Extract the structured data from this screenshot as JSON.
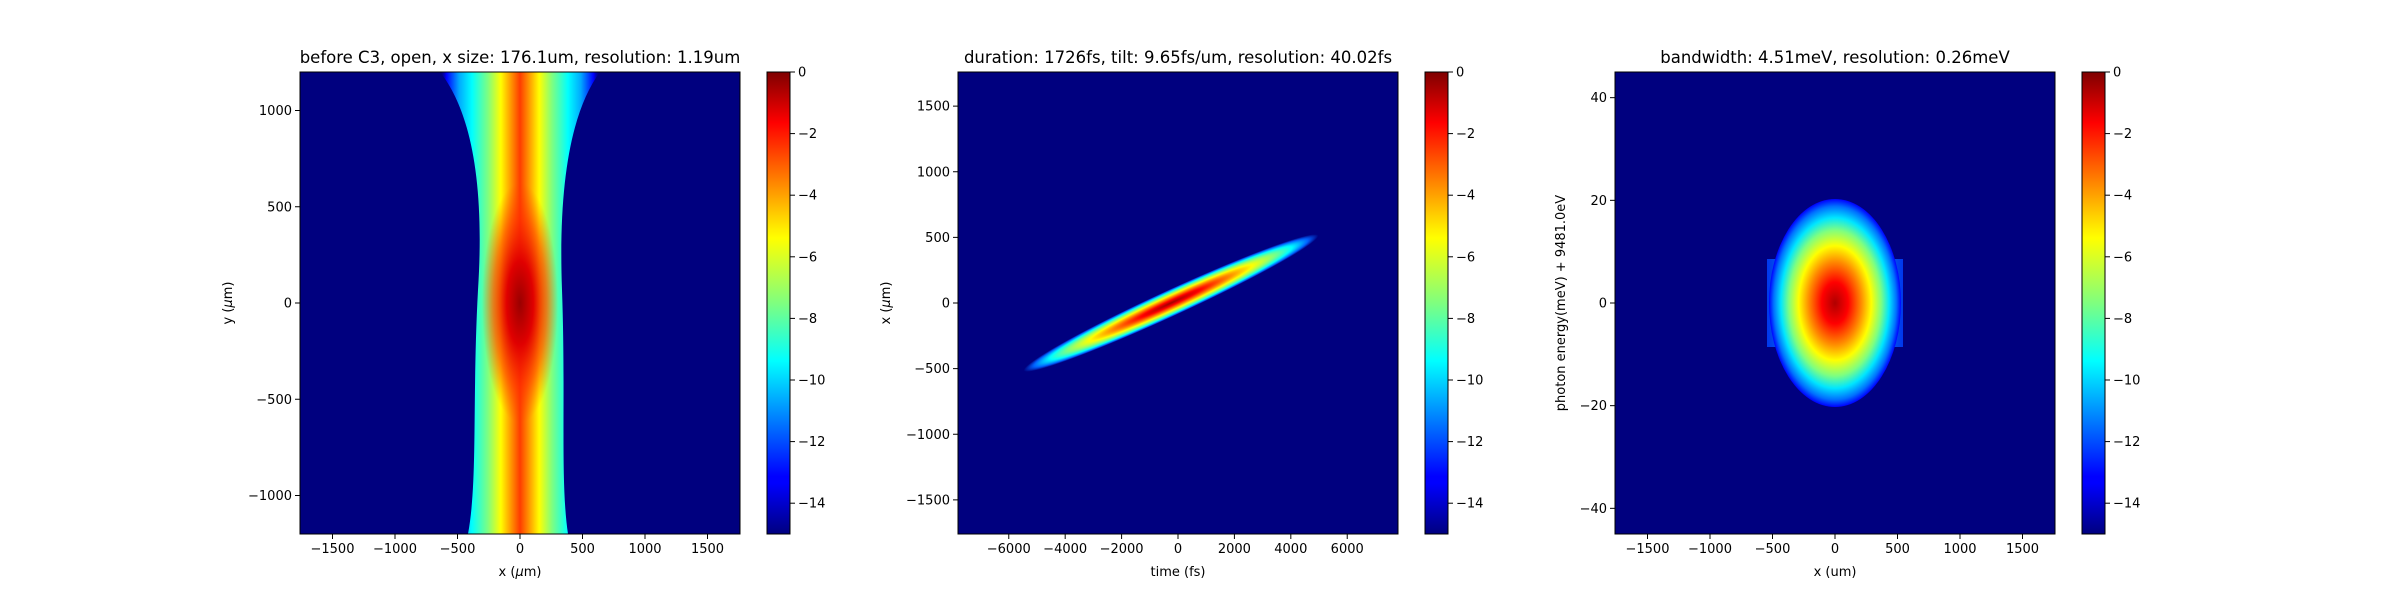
{
  "chart_data": [
    {
      "type": "heatmap",
      "title": "before C3, open, x size: 176.1um, resolution: 1.19um",
      "xlabel": "x ($\\mu$m)",
      "ylabel": "y ($\\mu$m)",
      "xlim": [
        -1760,
        1760
      ],
      "ylim": [
        -1200,
        1200
      ],
      "x_ticks": [
        -1500,
        -1000,
        -500,
        0,
        500,
        1000,
        1500
      ],
      "y_ticks": [
        -1000,
        -500,
        0,
        500,
        1000
      ],
      "x_tick_labels": [
        "−1500",
        "−1000",
        "−500",
        "0",
        "500",
        "1000",
        "1500"
      ],
      "y_tick_labels": [
        "−1000",
        "−500",
        "0",
        "500",
        "1000"
      ],
      "colorbar": {
        "range": [
          -15,
          0
        ],
        "ticks": [
          0,
          -2,
          -4,
          -6,
          -8,
          -10,
          -12,
          -14
        ],
        "tick_labels": [
          "0",
          "−2",
          "−4",
          "−6",
          "−8",
          "−10",
          "−12",
          "−14"
        ],
        "colormap": "jet"
      },
      "feature": {
        "shape": "vertical-beam",
        "center_x": 0,
        "center_y": 0,
        "x_half_width_core": 140,
        "x_half_width_edge": 430,
        "y_extent": [
          -1200,
          1200
        ]
      }
    },
    {
      "type": "heatmap",
      "title": "duration: 1726fs, tilt: 9.65fs/um, resolution: 40.02fs",
      "xlabel": "time (fs)",
      "ylabel": "x ($\\mu$m)",
      "xlim": [
        -7800,
        7800
      ],
      "ylim": [
        -1760,
        1760
      ],
      "x_ticks": [
        -6000,
        -4000,
        -2000,
        0,
        2000,
        4000,
        6000
      ],
      "y_ticks": [
        -1500,
        -1000,
        -500,
        0,
        500,
        1000,
        1500
      ],
      "x_tick_labels": [
        "−6000",
        "−4000",
        "−2000",
        "0",
        "2000",
        "4000",
        "6000"
      ],
      "y_tick_labels": [
        "−1500",
        "−1000",
        "−500",
        "0",
        "500",
        "1000",
        "1500"
      ],
      "colorbar": {
        "range": [
          -15,
          0
        ],
        "ticks": [
          0,
          -2,
          -4,
          -6,
          -8,
          -10,
          -12,
          -14
        ],
        "tick_labels": [
          "0",
          "−2",
          "−4",
          "−6",
          "−8",
          "−10",
          "−12",
          "−14"
        ],
        "colormap": "jet"
      },
      "feature": {
        "shape": "tilted-ellipse",
        "center_x": -200,
        "center_y": 0,
        "x_extent": [
          -3800,
          3800
        ],
        "y_extent": [
          -380,
          380
        ],
        "tilt_fs_per_um": 9.65
      }
    },
    {
      "type": "heatmap",
      "title": "bandwidth: 4.51meV, resolution: 0.26meV",
      "xlabel": "x (um)",
      "ylabel": "photon energy(meV) + 9481.0eV",
      "xlim": [
        -1760,
        1760
      ],
      "ylim": [
        -45,
        45
      ],
      "x_ticks": [
        -1500,
        -1000,
        -500,
        0,
        500,
        1000,
        1500
      ],
      "y_ticks": [
        -40,
        -20,
        0,
        20,
        40
      ],
      "x_tick_labels": [
        "−1500",
        "−1000",
        "−500",
        "0",
        "500",
        "1000",
        "1500"
      ],
      "y_tick_labels": [
        "−40",
        "−20",
        "0",
        "20",
        "40"
      ],
      "colorbar": {
        "range": [
          -15,
          0
        ],
        "ticks": [
          0,
          -2,
          -4,
          -6,
          -8,
          -10,
          -12,
          -14
        ],
        "tick_labels": [
          "0",
          "−2",
          "−4",
          "−6",
          "−8",
          "−10",
          "−12",
          "−14"
        ],
        "colormap": "jet"
      },
      "feature": {
        "shape": "ellipse",
        "center_x": 0,
        "center_y": 0,
        "x_half_width": 510,
        "y_half_width": 20,
        "side_band_x": 540,
        "side_band_y": 9
      }
    }
  ]
}
